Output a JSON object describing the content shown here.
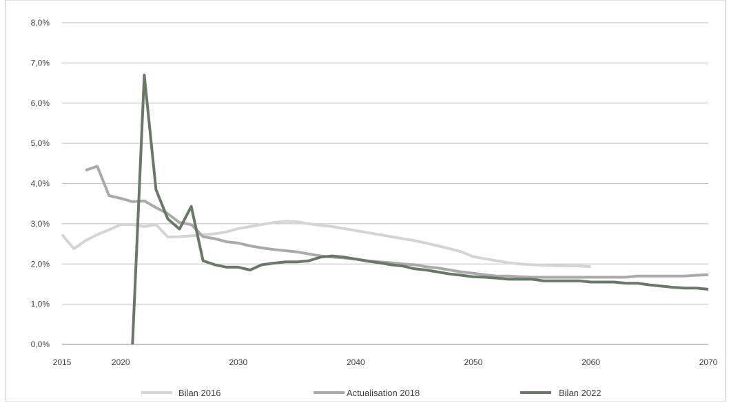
{
  "chart_data": {
    "type": "line",
    "title": "",
    "xlabel": "",
    "ylabel": "",
    "xlim": [
      2015,
      2070
    ],
    "ylim": [
      0,
      8
    ],
    "x_ticks": [
      2015,
      2020,
      2030,
      2040,
      2050,
      2060,
      2070
    ],
    "x_tick_labels": [
      "2015",
      "2020",
      "2030",
      "2040",
      "2050",
      "2060",
      "2070"
    ],
    "y_ticks": [
      0,
      1,
      2,
      3,
      4,
      5,
      6,
      7,
      8
    ],
    "y_tick_labels": [
      "0,0%",
      "1,0%",
      "2,0%",
      "3,0%",
      "4,0%",
      "5,0%",
      "6,0%",
      "7,0%",
      "8,0%"
    ],
    "grid": "horizontal",
    "legend": "bottom",
    "series": [
      {
        "name": "Bilan 2016",
        "color": "#d4d4d4",
        "x": [
          2015,
          2016,
          2017,
          2018,
          2019,
          2020,
          2021,
          2022,
          2023,
          2024,
          2025,
          2026,
          2027,
          2028,
          2029,
          2030,
          2031,
          2032,
          2033,
          2034,
          2035,
          2036,
          2037,
          2038,
          2039,
          2040,
          2041,
          2042,
          2043,
          2044,
          2045,
          2046,
          2047,
          2048,
          2049,
          2050,
          2051,
          2052,
          2053,
          2054,
          2055,
          2056,
          2057,
          2058,
          2059,
          2060
        ],
        "values": [
          2.73,
          2.38,
          2.58,
          2.73,
          2.85,
          2.98,
          2.98,
          2.93,
          2.98,
          2.67,
          2.68,
          2.7,
          2.73,
          2.75,
          2.8,
          2.88,
          2.93,
          2.98,
          3.03,
          3.06,
          3.05,
          3.0,
          2.96,
          2.93,
          2.88,
          2.83,
          2.78,
          2.73,
          2.68,
          2.63,
          2.58,
          2.52,
          2.45,
          2.38,
          2.3,
          2.18,
          2.13,
          2.08,
          2.03,
          2.0,
          1.98,
          1.97,
          1.96,
          1.95,
          1.95,
          1.93
        ]
      },
      {
        "name": "Actualisation 2018",
        "color": "#aaaaaa",
        "x": [
          2017,
          2018,
          2019,
          2020,
          2021,
          2022,
          2023,
          2024,
          2025,
          2026,
          2027,
          2028,
          2029,
          2030,
          2031,
          2032,
          2033,
          2034,
          2035,
          2036,
          2037,
          2038,
          2039,
          2040,
          2041,
          2042,
          2043,
          2044,
          2045,
          2046,
          2047,
          2048,
          2049,
          2050,
          2051,
          2052,
          2053,
          2054,
          2055,
          2056,
          2057,
          2058,
          2059,
          2060,
          2061,
          2062,
          2063,
          2064,
          2065,
          2066,
          2067,
          2068,
          2069,
          2070
        ],
        "values": [
          4.33,
          4.43,
          3.7,
          3.63,
          3.55,
          3.57,
          3.4,
          3.25,
          3.03,
          2.98,
          2.68,
          2.63,
          2.55,
          2.52,
          2.45,
          2.4,
          2.36,
          2.33,
          2.3,
          2.25,
          2.2,
          2.17,
          2.15,
          2.12,
          2.08,
          2.05,
          2.03,
          2.0,
          1.98,
          1.93,
          1.9,
          1.85,
          1.8,
          1.77,
          1.73,
          1.7,
          1.7,
          1.68,
          1.67,
          1.67,
          1.67,
          1.67,
          1.67,
          1.67,
          1.67,
          1.67,
          1.67,
          1.7,
          1.7,
          1.7,
          1.7,
          1.7,
          1.72,
          1.73
        ]
      },
      {
        "name": "Bilan 2022",
        "color": "#667a64",
        "x": [
          2021,
          2022,
          2023,
          2024,
          2025,
          2026,
          2027,
          2028,
          2029,
          2030,
          2031,
          2032,
          2033,
          2034,
          2035,
          2036,
          2037,
          2038,
          2039,
          2040,
          2041,
          2042,
          2043,
          2044,
          2045,
          2046,
          2047,
          2048,
          2049,
          2050,
          2051,
          2052,
          2053,
          2054,
          2055,
          2056,
          2057,
          2058,
          2059,
          2060,
          2061,
          2062,
          2063,
          2064,
          2065,
          2066,
          2067,
          2068,
          2069,
          2070
        ],
        "values": [
          0.0,
          6.7,
          3.85,
          3.12,
          2.87,
          3.43,
          2.08,
          1.98,
          1.92,
          1.92,
          1.85,
          1.98,
          2.02,
          2.05,
          2.05,
          2.08,
          2.17,
          2.2,
          2.17,
          2.12,
          2.07,
          2.03,
          1.98,
          1.95,
          1.88,
          1.85,
          1.8,
          1.75,
          1.72,
          1.68,
          1.67,
          1.65,
          1.62,
          1.62,
          1.62,
          1.58,
          1.58,
          1.58,
          1.58,
          1.55,
          1.55,
          1.55,
          1.52,
          1.52,
          1.48,
          1.45,
          1.42,
          1.4,
          1.4,
          1.37
        ]
      }
    ]
  }
}
